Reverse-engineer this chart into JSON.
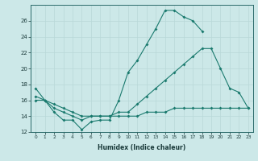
{
  "line1_x": [
    0,
    1,
    2,
    3,
    4,
    5,
    6,
    7,
    8,
    9,
    10,
    11,
    12,
    13,
    14,
    15,
    16,
    17,
    18
  ],
  "line1_y": [
    17.5,
    16.0,
    14.5,
    13.5,
    13.5,
    12.3,
    13.3,
    13.5,
    13.5,
    16.0,
    19.5,
    21.0,
    23.0,
    25.0,
    27.3,
    27.3,
    26.5,
    26.0,
    24.7
  ],
  "line2_x": [
    0,
    1,
    2,
    3,
    4,
    5,
    6,
    7,
    8,
    9,
    10,
    11,
    12,
    13,
    14,
    15,
    16,
    17,
    18,
    19,
    20,
    21,
    22,
    23
  ],
  "line2_y": [
    16.0,
    16.0,
    15.0,
    14.5,
    14.0,
    13.5,
    14.0,
    14.0,
    14.0,
    14.5,
    14.5,
    15.5,
    16.5,
    17.5,
    18.5,
    19.5,
    20.5,
    21.5,
    22.5,
    22.5,
    20.0,
    17.5,
    17.0,
    15.0
  ],
  "line3_x": [
    0,
    1,
    2,
    3,
    4,
    5,
    6,
    7,
    8,
    9,
    10,
    11,
    12,
    13,
    14,
    15,
    16,
    17,
    18,
    19,
    20,
    21,
    22,
    23
  ],
  "line3_y": [
    16.5,
    16.0,
    15.5,
    15.0,
    14.5,
    14.0,
    14.0,
    14.0,
    14.0,
    14.0,
    14.0,
    14.0,
    14.5,
    14.5,
    14.5,
    15.0,
    15.0,
    15.0,
    15.0,
    15.0,
    15.0,
    15.0,
    15.0,
    15.0
  ],
  "color": "#1a7a6e",
  "bg_color": "#cce8e8",
  "grid_color_major": "#b8d8d8",
  "grid_color_minor": "#d8ecec",
  "xlabel": "Humidex (Indice chaleur)",
  "ylim": [
    12,
    28
  ],
  "xlim": [
    -0.5,
    23.5
  ],
  "yticks": [
    12,
    14,
    16,
    18,
    20,
    22,
    24,
    26
  ],
  "xticks": [
    0,
    1,
    2,
    3,
    4,
    5,
    6,
    7,
    8,
    9,
    10,
    11,
    12,
    13,
    14,
    15,
    16,
    17,
    18,
    19,
    20,
    21,
    22,
    23
  ],
  "xtick_labels": [
    "0",
    "1",
    "2",
    "3",
    "4",
    "5",
    "6",
    "7",
    "8",
    "9",
    "10",
    "11",
    "12",
    "13",
    "14",
    "15",
    "16",
    "17",
    "18",
    "19",
    "20",
    "21",
    "22",
    "23"
  ]
}
